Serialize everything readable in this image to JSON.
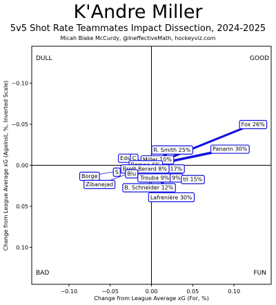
{
  "header": {
    "title": "K'Andre Miller",
    "subtitle": "5v5 Shot Rate Teammates Impact Dissection, 2024-2025",
    "credit": "Micah Blake McCurdy, @IneffectiveMath, hockeyviz.com"
  },
  "chart_data": {
    "type": "scatter",
    "xlabel": "Change from League Average xG (For, %)",
    "ylabel": "Change from League Average xG (Against, %, Inverted Scale)",
    "xlim": [
      -0.145,
      0.145
    ],
    "ylim": [
      -0.145,
      0.145
    ],
    "y_inverted": true,
    "grid": false,
    "zero_lines": true,
    "xticks": [
      -0.1,
      -0.05,
      0.0,
      0.05,
      0.1
    ],
    "yticks": [
      -0.1,
      -0.05,
      0.0,
      0.05,
      0.1
    ],
    "xtick_labels": [
      "−0.10",
      "−0.05",
      "0.00",
      "0.05",
      "0.10"
    ],
    "ytick_labels": [
      "−0.10",
      "−0.05",
      "0.00",
      "0.05",
      "0.10"
    ],
    "quadrant_labels": {
      "top_left": "DULL",
      "top_right": "GOOD",
      "bottom_left": "BAD",
      "bottom_right": "FUN"
    },
    "line_color": "#1111dd",
    "label_border_color": "#1111dd",
    "teammates": [
      {
        "label": "Fox 26%",
        "x": 0.123,
        "y": -0.05,
        "weight": 26
      },
      {
        "label": "Panarin 30%",
        "x": 0.095,
        "y": -0.02,
        "weight": 30
      },
      {
        "label": "R. Smith 25%",
        "x": 0.025,
        "y": -0.019,
        "weight": 25
      },
      {
        "label": "Miller 10%",
        "x": 0.007,
        "y": -0.007,
        "weight": 10
      },
      {
        "label": "Eds",
        "x": -0.032,
        "y": -0.009,
        "weight": 5
      },
      {
        "label": "C",
        "x": -0.021,
        "y": -0.009,
        "weight": 5
      },
      {
        "label": "Rempe 6%",
        "x": -0.007,
        "y": -0.001,
        "weight": 6
      },
      {
        "label": "17%",
        "x": 0.03,
        "y": 0.004,
        "weight": 17
      },
      {
        "label": "Brett Berard 8%",
        "x": -0.008,
        "y": 0.004,
        "weight": 8
      },
      {
        "label": "S",
        "x": -0.042,
        "y": 0.008,
        "weight": 5
      },
      {
        "label": "Borge",
        "x": -0.075,
        "y": 0.013,
        "weight": 5
      },
      {
        "label": "Blu",
        "x": -0.024,
        "y": 0.01,
        "weight": 5
      },
      {
        "label": "Trouba 9%",
        "x": 0.004,
        "y": 0.015,
        "weight": 9
      },
      {
        "label": "9%",
        "x": 0.03,
        "y": 0.015,
        "weight": 9
      },
      {
        "label": "til 15%",
        "x": 0.05,
        "y": 0.017,
        "weight": 15
      },
      {
        "label": "Zibanejad",
        "x": -0.063,
        "y": 0.023,
        "weight": 5
      },
      {
        "label": "B. Schneider 12%",
        "x": -0.003,
        "y": 0.027,
        "weight": 12
      },
      {
        "label": "Lafrenière 30%",
        "x": 0.024,
        "y": 0.039,
        "weight": 30
      }
    ]
  }
}
